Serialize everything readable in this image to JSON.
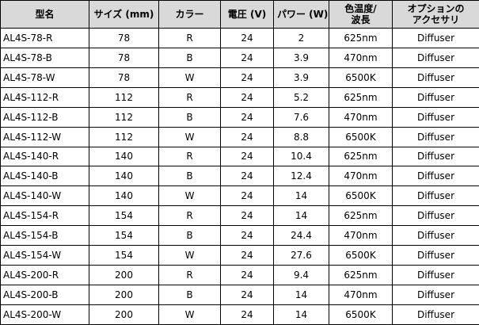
{
  "table": {
    "header": [
      [
        "型名"
      ],
      [
        "サイズ (mm)"
      ],
      [
        "カラー"
      ],
      [
        "電圧 (V)"
      ],
      [
        "パワー (W)"
      ],
      [
        "色温度/",
        "波長"
      ],
      [
        "オプションの",
        "アクセサリ"
      ]
    ],
    "rows": [
      [
        "AL4S-78-R",
        78,
        "R",
        24,
        2,
        "625nm",
        "Diffuser"
      ],
      [
        "AL4S-78-B",
        78,
        "B",
        24,
        3.9,
        "470nm",
        "Diffuser"
      ],
      [
        "AL4S-78-W",
        78,
        "W",
        24,
        3.9,
        "6500K",
        "Diffuser"
      ],
      [
        "AL4S-112-R",
        112,
        "R",
        24,
        5.2,
        "625nm",
        "Diffuser"
      ],
      [
        "AL4S-112-B",
        112,
        "B",
        24,
        7.6,
        "470nm",
        "Diffuser"
      ],
      [
        "AL4S-112-W",
        112,
        "W",
        24,
        8.8,
        "6500K",
        "Diffuser"
      ],
      [
        "AL4S-140-R",
        140,
        "R",
        24,
        10.4,
        "625nm",
        "Diffuser"
      ],
      [
        "AL4S-140-B",
        140,
        "B",
        24,
        12.4,
        "470nm",
        "Diffuser"
      ],
      [
        "AL4S-140-W",
        140,
        "W",
        24,
        14,
        "6500K",
        "Diffuser"
      ],
      [
        "AL4S-154-R",
        154,
        "R",
        24,
        14,
        "625nm",
        "Diffuser"
      ],
      [
        "AL4S-154-B",
        154,
        "B",
        24,
        24.4,
        "470nm",
        "Diffuser"
      ],
      [
        "AL4S-154-W",
        154,
        "W",
        24,
        27.6,
        "6500K",
        "Diffuser"
      ],
      [
        "AL4S-200-R",
        200,
        "R",
        24,
        9.4,
        "625nm",
        "Diffuser"
      ],
      [
        "AL4S-200-B",
        200,
        "B",
        24,
        14,
        "470nm",
        "Diffuser"
      ],
      [
        "AL4S-200-W",
        200,
        "W",
        24,
        14,
        "6500K",
        "Diffuser"
      ]
    ]
  }
}
